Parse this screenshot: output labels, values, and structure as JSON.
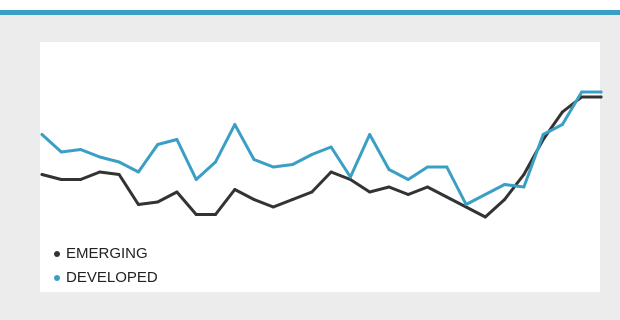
{
  "colors": {
    "accent": "#3a9fc4",
    "emerging": "#333333",
    "developed": "#3a9fc4"
  },
  "chart_data": {
    "type": "line",
    "x": [
      1,
      2,
      3,
      4,
      5,
      6,
      7,
      8,
      9,
      10,
      11,
      12,
      13,
      14,
      15,
      16,
      17,
      18,
      19,
      20,
      21,
      22,
      23,
      24,
      25,
      26,
      27,
      28,
      29,
      30
    ],
    "ylim": [
      0,
      100
    ],
    "grid": false,
    "legend_position": "bottom-left",
    "series": [
      {
        "name": "EMERGING",
        "color": "#333333",
        "values": [
          47,
          45,
          45,
          48,
          47,
          35,
          36,
          40,
          31,
          31,
          41,
          37,
          34,
          37,
          40,
          48,
          45,
          40,
          42,
          39,
          42,
          38,
          34,
          30,
          37,
          47,
          61,
          72,
          78,
          78
        ]
      },
      {
        "name": "DEVELOPED",
        "color": "#3a9fc4",
        "values": [
          63,
          56,
          57,
          54,
          52,
          48,
          59,
          61,
          45,
          52,
          67,
          53,
          50,
          51,
          55,
          58,
          46,
          63,
          49,
          45,
          50,
          50,
          35,
          39,
          43,
          42,
          63,
          67,
          80,
          80
        ]
      }
    ]
  }
}
